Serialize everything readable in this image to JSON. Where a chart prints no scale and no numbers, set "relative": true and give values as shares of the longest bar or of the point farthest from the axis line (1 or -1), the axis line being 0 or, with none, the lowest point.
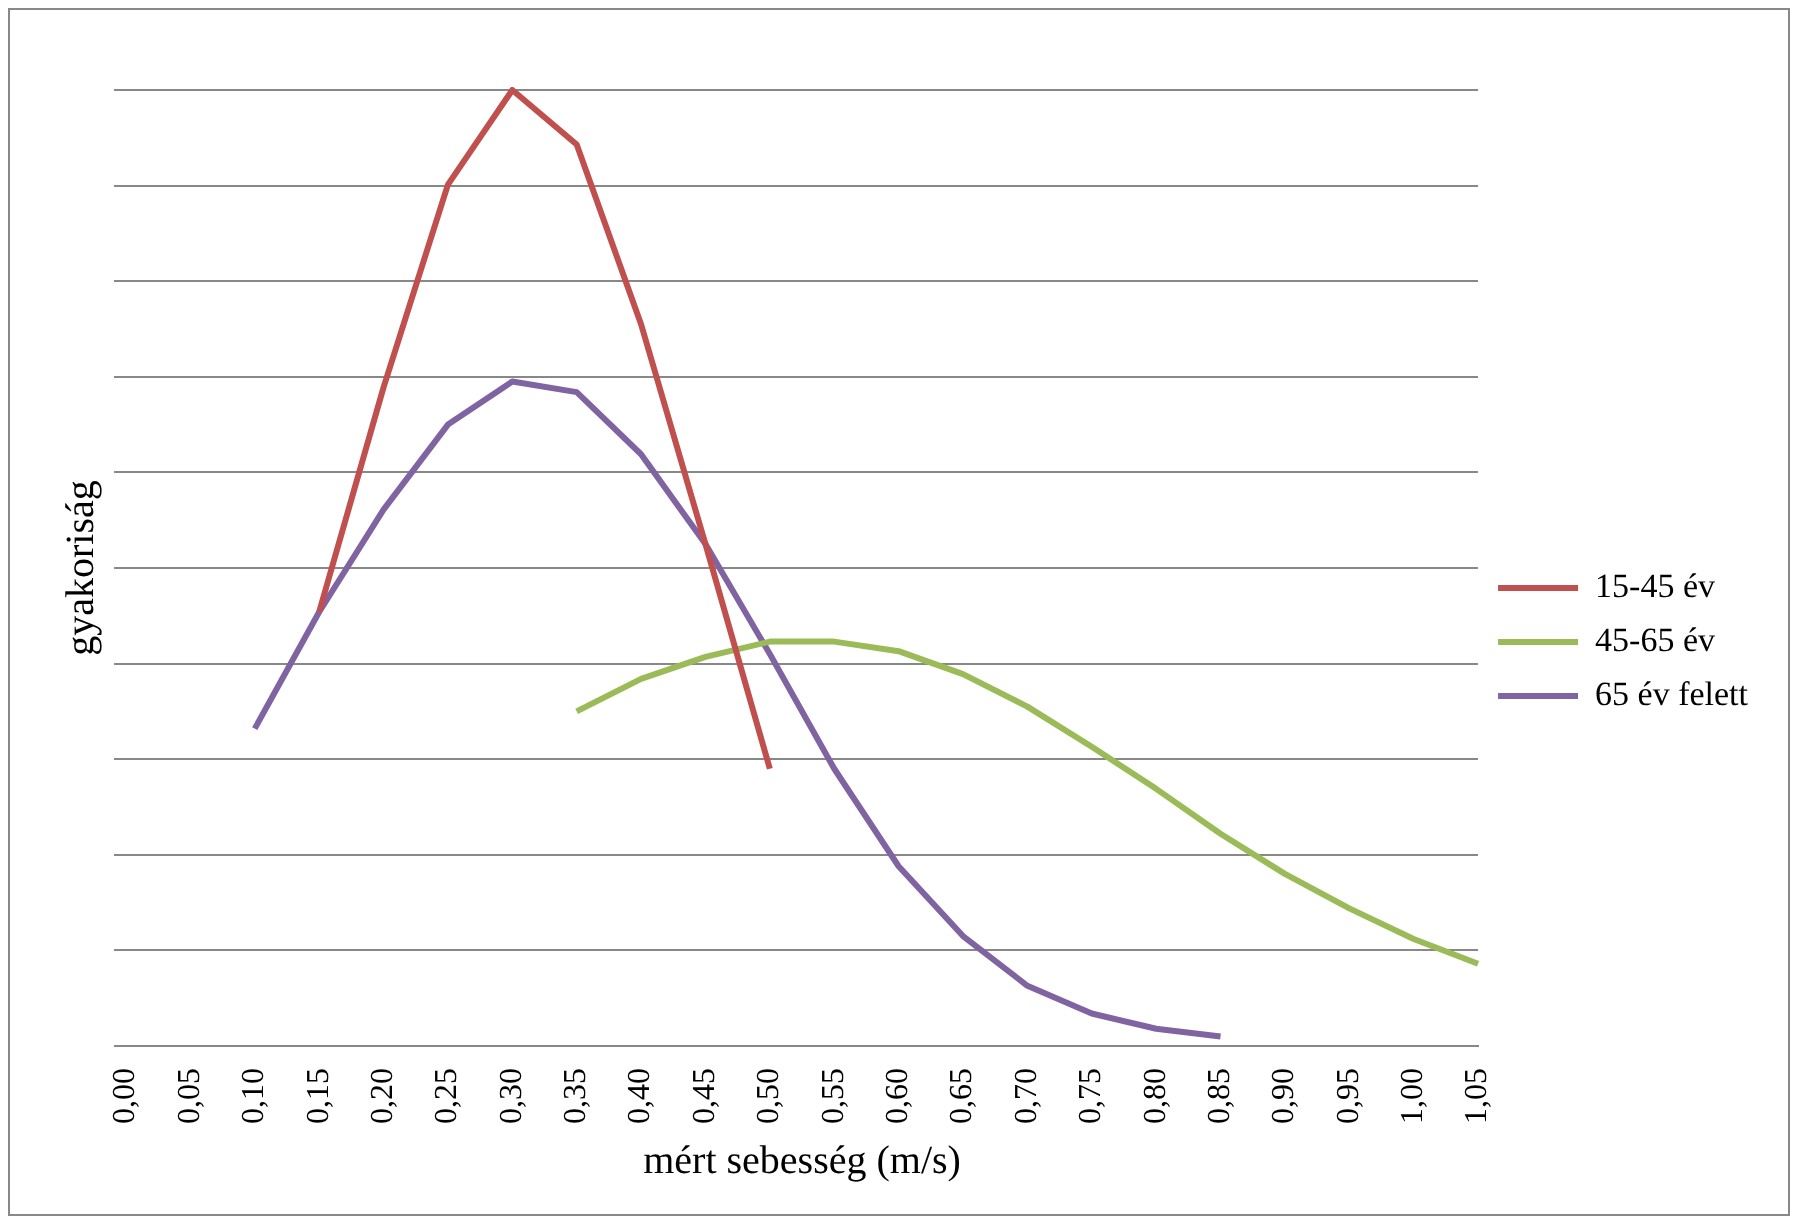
{
  "chart_data": {
    "type": "line",
    "relative": true,
    "xlabel": "mért sebesség (m/s)",
    "ylabel": "gyakoriság",
    "categories": [
      "0,00",
      "0,05",
      "0,10",
      "0,15",
      "0,20",
      "0,25",
      "0,30",
      "0,35",
      "0,40",
      "0,45",
      "0,50",
      "0,55",
      "0,60",
      "0,65",
      "0,70",
      "0,75",
      "0,80",
      "0,85",
      "0,90",
      "0,95",
      "1,00",
      "1,05"
    ],
    "series": [
      {
        "name": "15-45 év",
        "color": "#c0504d",
        "values": [
          null,
          null,
          null,
          0.454,
          0.689,
          0.901,
          1,
          0.943,
          0.755,
          0.525,
          0.29,
          null,
          null,
          null,
          null,
          null,
          null,
          null,
          null,
          null,
          null,
          null
        ]
      },
      {
        "name": "45-65 év",
        "color": "#9bbb59",
        "values": [
          null,
          null,
          null,
          null,
          null,
          null,
          null,
          0.35,
          0.384,
          0.407,
          0.423,
          0.423,
          0.413,
          0.389,
          0.355,
          0.313,
          0.269,
          0.222,
          0.18,
          0.144,
          0.112,
          0.086
        ]
      },
      {
        "name": "65 év felett",
        "color": "#8064a2",
        "values": [
          null,
          null,
          0.332,
          0.454,
          0.561,
          0.65,
          0.695,
          0.684,
          0.619,
          0.525,
          0.41,
          0.29,
          0.188,
          0.115,
          0.063,
          0.034,
          0.018,
          0.01,
          null,
          null,
          null,
          null
        ]
      }
    ],
    "grid": "y",
    "legend": "right",
    "marker": "none",
    "line_style": "solid"
  }
}
